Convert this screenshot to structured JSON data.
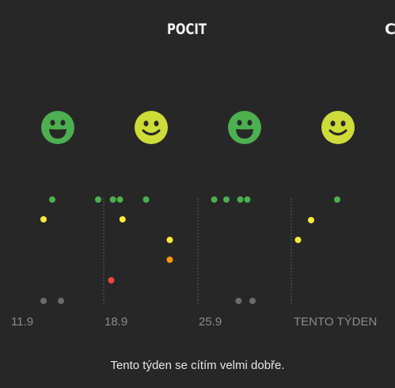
{
  "header": {
    "title": "POCIT",
    "next_tab_partial": "C"
  },
  "colors": {
    "green": "#4caf50",
    "lime": "#cddc39",
    "yellow": "#ffeb3b",
    "orange": "#ff9800",
    "red": "#f44336",
    "gray": "#6b6b6b"
  },
  "weeks": [
    {
      "label": "11.9",
      "face": "happy-face-icon",
      "face_color": "#4caf50",
      "points": [
        {
          "day": 1,
          "level": "green"
        },
        {
          "day": 0,
          "level": "yellow"
        },
        {
          "day": 0,
          "level": "gray"
        },
        {
          "day": 2,
          "level": "gray"
        }
      ]
    },
    {
      "label": "18.9",
      "face": "smile-face-icon",
      "face_color": "#cddc39",
      "points": [
        {
          "day": 0,
          "level": "green"
        },
        {
          "day": 1.7,
          "level": "green"
        },
        {
          "day": 2.5,
          "level": "green"
        },
        {
          "day": 5.5,
          "level": "green"
        },
        {
          "day": 2.8,
          "level": "yellow"
        },
        {
          "day": 1.5,
          "level": "red"
        }
      ]
    },
    {
      "label": "25.9",
      "face": "happy-face-icon",
      "face_color": "#4caf50",
      "points": [
        {
          "day": -2.5,
          "level": "yellow"
        },
        {
          "day": -2.5,
          "level": "orange"
        },
        {
          "day": 2.6,
          "level": "green"
        },
        {
          "day": 4,
          "level": "green"
        },
        {
          "day": 5.6,
          "level": "green"
        },
        {
          "day": 6.4,
          "level": "green"
        },
        {
          "day": 5.4,
          "level": "gray"
        },
        {
          "day": 7,
          "level": "gray"
        }
      ]
    },
    {
      "label": "TENTO TÝDEN",
      "face": "smile-face-icon",
      "face_color": "#cddc39",
      "points": [
        {
          "day": 1.5,
          "level": "yellow"
        },
        {
          "day": 3,
          "level": "yellow"
        },
        {
          "day": 6,
          "level": "green"
        }
      ]
    }
  ],
  "summary": "Tento týden se cítím velmi dobře."
}
